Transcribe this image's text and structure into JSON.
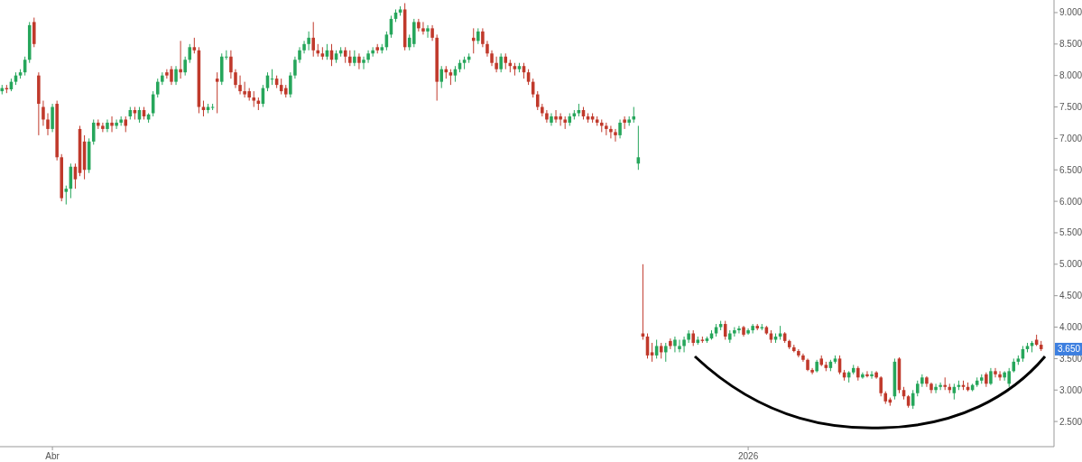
{
  "chart_data": {
    "type": "candlestick",
    "categories": [
      null,
      null,
      null,
      null,
      null,
      null,
      null,
      null,
      null,
      null,
      null,
      "Abr",
      null,
      null,
      null,
      null,
      null,
      null,
      null,
      null,
      null,
      null,
      null,
      null,
      null,
      null,
      null,
      null,
      null,
      null,
      null,
      null,
      null,
      null,
      null,
      null,
      null,
      null,
      null,
      null,
      null,
      null,
      null,
      null,
      null,
      null,
      null,
      null,
      null,
      null,
      null,
      null,
      null,
      null,
      null,
      null,
      null,
      null,
      null,
      null,
      null,
      null,
      null,
      null,
      null,
      null,
      null,
      null,
      null,
      null,
      null,
      null,
      null,
      null,
      null,
      null,
      null,
      null,
      null,
      null,
      null,
      null,
      null,
      null,
      null,
      null,
      null,
      null,
      null,
      null,
      null,
      null,
      null,
      null,
      null,
      null,
      null,
      null,
      null,
      null,
      null,
      null,
      null,
      null,
      null,
      null,
      null,
      null,
      null,
      null,
      null,
      null,
      null,
      null,
      null,
      null,
      null,
      null,
      null,
      null,
      null,
      null,
      null,
      null,
      null,
      null,
      null,
      null,
      null,
      null,
      null,
      null,
      null,
      null,
      null,
      null,
      null,
      null,
      null,
      null,
      null,
      null,
      null,
      null,
      null,
      null,
      null,
      null,
      null,
      null,
      null,
      null,
      null,
      null,
      null,
      null,
      null,
      null,
      null,
      null,
      null,
      null,
      null,
      "2026",
      null,
      null,
      null,
      null,
      null,
      null,
      null,
      null,
      null,
      null,
      null,
      null,
      null,
      null,
      null,
      null,
      null,
      null,
      null,
      null,
      null,
      null,
      null,
      null,
      null,
      null,
      null,
      null,
      null,
      null,
      null,
      null,
      null,
      null,
      null,
      null,
      null,
      null,
      null,
      null,
      null,
      null,
      null,
      null,
      null,
      null,
      null,
      null,
      null,
      null,
      null,
      null,
      null,
      null,
      null,
      null,
      null,
      null,
      null,
      null,
      null,
      null,
      null,
      null
    ],
    "ohlc": [
      [
        7.75,
        7.85,
        7.7,
        7.8
      ],
      [
        7.8,
        7.85,
        7.72,
        7.78
      ],
      [
        7.78,
        7.95,
        7.75,
        7.9
      ],
      [
        7.9,
        8.05,
        7.85,
        8.0
      ],
      [
        8.0,
        8.1,
        7.95,
        8.05
      ],
      [
        8.05,
        8.3,
        8.0,
        8.25
      ],
      [
        8.25,
        8.85,
        8.2,
        8.8
      ],
      [
        8.85,
        8.92,
        8.45,
        8.5
      ],
      [
        8.0,
        8.05,
        7.05,
        7.55
      ],
      [
        7.5,
        7.6,
        7.2,
        7.3
      ],
      [
        7.3,
        7.4,
        7.05,
        7.15
      ],
      [
        7.15,
        7.55,
        7.1,
        7.5
      ],
      [
        7.55,
        7.6,
        6.65,
        6.7
      ],
      [
        6.7,
        6.75,
        6.0,
        6.05
      ],
      [
        6.15,
        6.25,
        5.95,
        6.2
      ],
      [
        6.2,
        6.6,
        6.05,
        6.55
      ],
      [
        6.55,
        6.6,
        6.2,
        6.35
      ],
      [
        7.15,
        7.2,
        6.4,
        6.45
      ],
      [
        6.95,
        7.05,
        6.35,
        6.5
      ],
      [
        6.5,
        7.0,
        6.45,
        6.95
      ],
      [
        6.95,
        7.3,
        6.9,
        7.25
      ],
      [
        7.25,
        7.3,
        7.15,
        7.2
      ],
      [
        7.2,
        7.25,
        7.1,
        7.15
      ],
      [
        7.15,
        7.3,
        7.1,
        7.25
      ],
      [
        7.25,
        7.35,
        7.1,
        7.2
      ],
      [
        7.2,
        7.3,
        7.15,
        7.25
      ],
      [
        7.25,
        7.35,
        7.2,
        7.3
      ],
      [
        7.3,
        7.35,
        7.1,
        7.2
      ],
      [
        7.35,
        7.5,
        7.3,
        7.45
      ],
      [
        7.45,
        7.5,
        7.3,
        7.4
      ],
      [
        7.3,
        7.5,
        7.25,
        7.45
      ],
      [
        7.45,
        7.5,
        7.3,
        7.35
      ],
      [
        7.3,
        7.4,
        7.25,
        7.38
      ],
      [
        7.4,
        7.75,
        7.35,
        7.7
      ],
      [
        7.7,
        7.95,
        7.65,
        7.9
      ],
      [
        7.9,
        8.05,
        7.85,
        8.0
      ],
      [
        8.05,
        8.1,
        7.95,
        8.0
      ],
      [
        8.1,
        8.15,
        7.85,
        7.9
      ],
      [
        7.9,
        8.15,
        7.85,
        8.1
      ],
      [
        8.1,
        8.55,
        7.95,
        8.05
      ],
      [
        8.05,
        8.3,
        8.0,
        8.25
      ],
      [
        8.25,
        8.5,
        8.2,
        8.45
      ],
      [
        8.45,
        8.6,
        8.35,
        8.4
      ],
      [
        8.4,
        8.45,
        7.4,
        7.5
      ],
      [
        7.5,
        7.6,
        7.35,
        7.45
      ],
      [
        7.45,
        7.55,
        7.4,
        7.5
      ],
      [
        7.5,
        7.55,
        7.45,
        7.5
      ],
      [
        7.95,
        8.05,
        7.4,
        7.9
      ],
      [
        7.9,
        8.35,
        7.85,
        8.3
      ],
      [
        8.3,
        8.4,
        8.25,
        8.3
      ],
      [
        8.3,
        8.4,
        7.95,
        8.05
      ],
      [
        8.05,
        8.1,
        7.8,
        7.85
      ],
      [
        7.85,
        8.0,
        7.7,
        7.75
      ],
      [
        7.75,
        7.9,
        7.65,
        7.7
      ],
      [
        7.75,
        7.8,
        7.6,
        7.65
      ],
      [
        7.65,
        7.75,
        7.5,
        7.6
      ],
      [
        7.6,
        7.65,
        7.45,
        7.55
      ],
      [
        7.55,
        7.85,
        7.5,
        7.8
      ],
      [
        7.8,
        8.05,
        7.75,
        8.0
      ],
      [
        7.95,
        8.1,
        7.85,
        7.95
      ],
      [
        7.95,
        8.0,
        7.8,
        7.85
      ],
      [
        7.85,
        7.95,
        7.7,
        7.75
      ],
      [
        7.8,
        7.85,
        7.65,
        7.7
      ],
      [
        7.7,
        8.05,
        7.65,
        8.0
      ],
      [
        8.0,
        8.3,
        7.95,
        8.25
      ],
      [
        8.25,
        8.45,
        8.2,
        8.4
      ],
      [
        8.4,
        8.55,
        8.35,
        8.5
      ],
      [
        8.5,
        8.7,
        8.4,
        8.6
      ],
      [
        8.6,
        8.85,
        8.3,
        8.4
      ],
      [
        8.4,
        8.5,
        8.3,
        8.35
      ],
      [
        8.35,
        8.45,
        8.25,
        8.3
      ],
      [
        8.3,
        8.5,
        8.25,
        8.4
      ],
      [
        8.4,
        8.5,
        8.15,
        8.25
      ],
      [
        8.25,
        8.4,
        8.2,
        8.35
      ],
      [
        8.35,
        8.45,
        8.3,
        8.4
      ],
      [
        8.4,
        8.45,
        8.2,
        8.3
      ],
      [
        8.3,
        8.4,
        8.15,
        8.2
      ],
      [
        8.2,
        8.4,
        8.15,
        8.3
      ],
      [
        8.3,
        8.35,
        8.1,
        8.2
      ],
      [
        8.2,
        8.3,
        8.1,
        8.25
      ],
      [
        8.25,
        8.4,
        8.2,
        8.35
      ],
      [
        8.35,
        8.45,
        8.3,
        8.4
      ],
      [
        8.45,
        8.5,
        8.35,
        8.4
      ],
      [
        8.4,
        8.5,
        8.35,
        8.45
      ],
      [
        8.45,
        8.7,
        8.4,
        8.65
      ],
      [
        8.65,
        8.95,
        8.6,
        8.9
      ],
      [
        8.9,
        9.05,
        8.85,
        9.0
      ],
      [
        9.0,
        9.1,
        8.95,
        9.05
      ],
      [
        9.05,
        9.15,
        8.4,
        8.45
      ],
      [
        8.45,
        8.65,
        8.4,
        8.6
      ],
      [
        8.5,
        8.9,
        8.45,
        8.85
      ],
      [
        8.85,
        8.9,
        8.7,
        8.75
      ],
      [
        8.75,
        8.85,
        8.65,
        8.7
      ],
      [
        8.7,
        8.8,
        8.6,
        8.75
      ],
      [
        8.75,
        8.8,
        8.55,
        8.6
      ],
      [
        8.6,
        8.65,
        7.6,
        7.9
      ],
      [
        7.9,
        8.15,
        7.8,
        8.1
      ],
      [
        8.1,
        8.15,
        7.95,
        8.05
      ],
      [
        8.05,
        8.1,
        7.85,
        8.0
      ],
      [
        8.0,
        8.15,
        7.9,
        8.1
      ],
      [
        8.1,
        8.25,
        8.05,
        8.2
      ],
      [
        8.2,
        8.3,
        8.1,
        8.25
      ],
      [
        8.25,
        8.35,
        8.2,
        8.3
      ],
      [
        8.6,
        8.75,
        8.35,
        8.55
      ],
      [
        8.55,
        8.75,
        8.5,
        8.7
      ],
      [
        8.7,
        8.75,
        8.45,
        8.5
      ],
      [
        8.5,
        8.55,
        8.3,
        8.35
      ],
      [
        8.35,
        8.4,
        8.15,
        8.2
      ],
      [
        8.2,
        8.3,
        8.05,
        8.1
      ],
      [
        8.1,
        8.35,
        8.05,
        8.3
      ],
      [
        8.3,
        8.35,
        8.1,
        8.2
      ],
      [
        8.2,
        8.25,
        8.05,
        8.15
      ],
      [
        8.15,
        8.2,
        8.0,
        8.1
      ],
      [
        8.1,
        8.2,
        8.05,
        8.15
      ],
      [
        8.15,
        8.2,
        7.95,
        8.05
      ],
      [
        8.05,
        8.1,
        7.85,
        7.9
      ],
      [
        7.9,
        7.95,
        7.65,
        7.7
      ],
      [
        7.7,
        7.75,
        7.45,
        7.5
      ],
      [
        7.5,
        7.55,
        7.35,
        7.4
      ],
      [
        7.4,
        7.45,
        7.25,
        7.3
      ],
      [
        7.25,
        7.4,
        7.2,
        7.35
      ],
      [
        7.35,
        7.45,
        7.25,
        7.3
      ],
      [
        7.35,
        7.4,
        7.2,
        7.3
      ],
      [
        7.3,
        7.35,
        7.15,
        7.25
      ],
      [
        7.25,
        7.4,
        7.2,
        7.35
      ],
      [
        7.35,
        7.45,
        7.3,
        7.4
      ],
      [
        7.4,
        7.55,
        7.35,
        7.45
      ],
      [
        7.45,
        7.5,
        7.3,
        7.35
      ],
      [
        7.35,
        7.4,
        7.25,
        7.3
      ],
      [
        7.35,
        7.4,
        7.25,
        7.3
      ],
      [
        7.3,
        7.35,
        7.2,
        7.25
      ],
      [
        7.25,
        7.3,
        7.1,
        7.2
      ],
      [
        7.2,
        7.25,
        7.05,
        7.15
      ],
      [
        7.15,
        7.2,
        7.0,
        7.1
      ],
      [
        7.1,
        7.15,
        6.95,
        7.05
      ],
      [
        7.05,
        7.3,
        7.0,
        7.25
      ],
      [
        7.3,
        7.35,
        7.15,
        7.25
      ],
      [
        7.25,
        7.35,
        7.2,
        7.3
      ],
      [
        7.3,
        7.5,
        7.25,
        7.35
      ],
      [
        6.6,
        7.2,
        6.5,
        6.7
      ],
      [
        3.9,
        5.0,
        3.8,
        3.85
      ],
      [
        3.85,
        3.9,
        3.5,
        3.55
      ],
      [
        3.6,
        3.75,
        3.45,
        3.55
      ],
      [
        3.55,
        3.8,
        3.5,
        3.7
      ],
      [
        3.7,
        3.75,
        3.5,
        3.6
      ],
      [
        3.6,
        3.75,
        3.45,
        3.7
      ],
      [
        3.78,
        3.82,
        3.65,
        3.7
      ],
      [
        3.7,
        3.85,
        3.6,
        3.8
      ],
      [
        3.65,
        3.8,
        3.6,
        3.7
      ],
      [
        3.7,
        3.85,
        3.6,
        3.8
      ],
      [
        3.8,
        3.95,
        3.75,
        3.9
      ],
      [
        3.9,
        3.95,
        3.7,
        3.75
      ],
      [
        3.75,
        3.85,
        3.72,
        3.8
      ],
      [
        3.8,
        3.85,
        3.75,
        3.78
      ],
      [
        3.78,
        3.85,
        3.75,
        3.82
      ],
      [
        3.82,
        3.95,
        3.8,
        3.9
      ],
      [
        3.9,
        4.05,
        3.85,
        4.0
      ],
      [
        4.0,
        4.1,
        3.95,
        4.05
      ],
      [
        4.05,
        4.1,
        3.8,
        3.85
      ],
      [
        3.8,
        3.95,
        3.75,
        3.9
      ],
      [
        3.9,
        4.0,
        3.85,
        3.95
      ],
      [
        3.95,
        4.02,
        3.9,
        3.98
      ],
      [
        4.0,
        4.02,
        3.85,
        3.88
      ],
      [
        3.9,
        3.98,
        3.88,
        3.95
      ],
      [
        3.95,
        4.05,
        3.9,
        4.02
      ],
      [
        4.02,
        4.05,
        3.95,
        3.98
      ],
      [
        3.98,
        4.05,
        3.95,
        4.0
      ],
      [
        4.0,
        4.02,
        3.88,
        3.9
      ],
      [
        3.9,
        3.95,
        3.75,
        3.8
      ],
      [
        3.8,
        3.9,
        3.75,
        3.85
      ],
      [
        3.85,
        4.02,
        3.8,
        3.9
      ],
      [
        3.9,
        3.92,
        3.75,
        3.78
      ],
      [
        3.78,
        3.8,
        3.65,
        3.68
      ],
      [
        3.68,
        3.72,
        3.6,
        3.62
      ],
      [
        3.62,
        3.65,
        3.52,
        3.55
      ],
      [
        3.55,
        3.58,
        3.45,
        3.48
      ],
      [
        3.48,
        3.5,
        3.3,
        3.32
      ],
      [
        3.32,
        3.35,
        3.25,
        3.28
      ],
      [
        3.3,
        3.48,
        3.28,
        3.45
      ],
      [
        3.5,
        3.55,
        3.38,
        3.4
      ],
      [
        3.4,
        3.45,
        3.3,
        3.35
      ],
      [
        3.35,
        3.48,
        3.3,
        3.45
      ],
      [
        3.45,
        3.55,
        3.42,
        3.5
      ],
      [
        3.5,
        3.55,
        3.25,
        3.28
      ],
      [
        3.28,
        3.32,
        3.15,
        3.2
      ],
      [
        3.2,
        3.3,
        3.12,
        3.28
      ],
      [
        3.28,
        3.4,
        3.25,
        3.35
      ],
      [
        3.35,
        3.38,
        3.15,
        3.2
      ],
      [
        3.2,
        3.28,
        3.18,
        3.25
      ],
      [
        3.25,
        3.3,
        3.2,
        3.22
      ],
      [
        3.22,
        3.3,
        3.18,
        3.25
      ],
      [
        3.28,
        3.3,
        3.18,
        3.2
      ],
      [
        3.2,
        3.22,
        2.9,
        2.95
      ],
      [
        2.95,
        2.98,
        2.78,
        2.82
      ],
      [
        2.85,
        2.88,
        2.75,
        2.8
      ],
      [
        2.9,
        3.5,
        2.85,
        3.45
      ],
      [
        3.5,
        3.52,
        2.95,
        3.0
      ],
      [
        3.0,
        3.05,
        2.85,
        2.9
      ],
      [
        2.9,
        2.92,
        2.72,
        2.75
      ],
      [
        2.75,
        3.0,
        2.7,
        2.95
      ],
      [
        2.95,
        3.15,
        2.9,
        3.1
      ],
      [
        3.1,
        3.25,
        3.05,
        3.2
      ],
      [
        3.2,
        3.22,
        3.05,
        3.1
      ],
      [
        3.1,
        3.12,
        2.95,
        3.0
      ],
      [
        3.0,
        3.1,
        2.95,
        3.05
      ],
      [
        3.05,
        3.12,
        3.0,
        3.08
      ],
      [
        3.08,
        3.2,
        3.0,
        3.05
      ],
      [
        3.05,
        3.1,
        2.95,
        3.0
      ],
      [
        2.95,
        3.1,
        2.85,
        3.05
      ],
      [
        3.05,
        3.15,
        3.0,
        3.08
      ],
      [
        3.08,
        3.15,
        3.0,
        3.05
      ],
      [
        3.05,
        3.12,
        2.98,
        3.0
      ],
      [
        3.0,
        3.1,
        2.98,
        3.08
      ],
      [
        3.08,
        3.2,
        3.05,
        3.15
      ],
      [
        3.15,
        3.25,
        3.1,
        3.2
      ],
      [
        3.25,
        3.28,
        3.05,
        3.1
      ],
      [
        3.1,
        3.35,
        3.08,
        3.3
      ],
      [
        3.3,
        3.35,
        3.2,
        3.25
      ],
      [
        3.25,
        3.3,
        3.15,
        3.2
      ],
      [
        3.2,
        3.3,
        3.15,
        3.28
      ],
      [
        3.1,
        3.35,
        3.05,
        3.3
      ],
      [
        3.3,
        3.5,
        3.28,
        3.45
      ],
      [
        3.45,
        3.55,
        3.4,
        3.5
      ],
      [
        3.5,
        3.7,
        3.45,
        3.65
      ],
      [
        3.65,
        3.75,
        3.6,
        3.7
      ],
      [
        3.7,
        3.78,
        3.6,
        3.75
      ],
      [
        3.8,
        3.88,
        3.7,
        3.72
      ],
      [
        3.72,
        3.78,
        3.62,
        3.65
      ]
    ],
    "colors": [
      "#26a65b",
      "#c0392b",
      "#26a65b",
      "#26a65b",
      "#26a65b",
      "#26a65b",
      "#26a65b",
      "#c0392b",
      "#c0392b",
      "#c0392b",
      "#c0392b",
      "#26a65b",
      "#c0392b",
      "#c0392b",
      "#26a65b",
      "#26a65b",
      "#c0392b",
      "#c0392b",
      "#c0392b",
      "#26a65b",
      "#26a65b",
      "#c0392b",
      "#c0392b",
      "#26a65b",
      "#c0392b",
      "#26a65b",
      "#26a65b",
      "#c0392b",
      "#26a65b",
      "#c0392b",
      "#26a65b",
      "#c0392b",
      "#26a65b",
      "#26a65b",
      "#26a65b",
      "#26a65b",
      "#c0392b",
      "#c0392b",
      "#26a65b",
      "#c0392b",
      "#26a65b",
      "#26a65b",
      "#c0392b",
      "#c0392b",
      "#c0392b",
      "#26a65b",
      "#26a65b",
      "#c0392b",
      "#26a65b",
      "#26a65b",
      "#c0392b",
      "#c0392b",
      "#c0392b",
      "#c0392b",
      "#c0392b",
      "#c0392b",
      "#c0392b",
      "#26a65b",
      "#26a65b",
      "#26a65b",
      "#c0392b",
      "#c0392b",
      "#c0392b",
      "#26a65b",
      "#26a65b",
      "#26a65b",
      "#26a65b",
      "#26a65b",
      "#c0392b",
      "#c0392b",
      "#c0392b",
      "#26a65b",
      "#c0392b",
      "#26a65b",
      "#26a65b",
      "#c0392b",
      "#c0392b",
      "#26a65b",
      "#c0392b",
      "#26a65b",
      "#26a65b",
      "#26a65b",
      "#c0392b",
      "#26a65b",
      "#26a65b",
      "#26a65b",
      "#26a65b",
      "#26a65b",
      "#c0392b",
      "#26a65b",
      "#26a65b",
      "#c0392b",
      "#c0392b",
      "#26a65b",
      "#c0392b",
      "#c0392b",
      "#26a65b",
      "#c0392b",
      "#c0392b",
      "#26a65b",
      "#26a65b",
      "#26a65b",
      "#26a65b",
      "#c0392b",
      "#26a65b",
      "#c0392b",
      "#c0392b",
      "#c0392b",
      "#c0392b",
      "#26a65b",
      "#c0392b",
      "#c0392b",
      "#c0392b",
      "#26a65b",
      "#c0392b",
      "#c0392b",
      "#c0392b",
      "#c0392b",
      "#c0392b",
      "#c0392b",
      "#26a65b",
      "#c0392b",
      "#c0392b",
      "#c0392b",
      "#26a65b",
      "#26a65b",
      "#26a65b",
      "#c0392b",
      "#c0392b",
      "#c0392b",
      "#c0392b",
      "#c0392b",
      "#c0392b",
      "#c0392b",
      "#c0392b",
      "#26a65b",
      "#c0392b",
      "#26a65b",
      "#26a65b",
      "#26a65b",
      "#c0392b",
      "#c0392b",
      "#c0392b",
      "#26a65b",
      "#c0392b",
      "#26a65b",
      "#c0392b",
      "#26a65b",
      "#26a65b",
      "#26a65b",
      "#26a65b",
      "#c0392b",
      "#26a65b",
      "#c0392b",
      "#26a65b",
      "#26a65b",
      "#26a65b",
      "#26a65b",
      "#c0392b",
      "#26a65b",
      "#26a65b",
      "#26a65b",
      "#c0392b",
      "#26a65b",
      "#26a65b",
      "#c0392b",
      "#26a65b",
      "#c0392b",
      "#c0392b",
      "#26a65b",
      "#26a65b",
      "#c0392b",
      "#c0392b",
      "#c0392b",
      "#c0392b",
      "#c0392b",
      "#c0392b",
      "#c0392b",
      "#26a65b",
      "#c0392b",
      "#c0392b",
      "#26a65b",
      "#26a65b",
      "#c0392b",
      "#c0392b",
      "#26a65b",
      "#26a65b",
      "#c0392b",
      "#26a65b",
      "#c0392b",
      "#26a65b",
      "#c0392b",
      "#c0392b",
      "#c0392b",
      "#c0392b",
      "#26a65b",
      "#c0392b",
      "#c0392b",
      "#c0392b",
      "#26a65b",
      "#26a65b",
      "#26a65b",
      "#c0392b",
      "#c0392b",
      "#26a65b",
      "#26a65b",
      "#c0392b",
      "#c0392b",
      "#26a65b",
      "#26a65b",
      "#c0392b",
      "#c0392b",
      "#26a65b",
      "#26a65b",
      "#26a65b",
      "#c0392b",
      "#26a65b",
      "#c0392b",
      "#c0392b",
      "#26a65b",
      "#26a65b",
      "#26a65b",
      "#26a65b",
      "#26a65b",
      "#26a65b",
      "#26a65b",
      "#c0392b",
      "#c0392b"
    ],
    "ylim": [
      2.1,
      9.2
    ],
    "yticks": [
      {
        "value": 2.5,
        "label": "2.500"
      },
      {
        "value": 3,
        "label": "3.000"
      },
      {
        "value": 3.5,
        "label": "3.500"
      },
      {
        "value": 4,
        "label": "4.000"
      },
      {
        "value": 4.5,
        "label": "4.500"
      },
      {
        "value": 5,
        "label": "5.000"
      },
      {
        "value": 5.5,
        "label": "5.500"
      },
      {
        "value": 6,
        "label": "6.000"
      },
      {
        "value": 6.5,
        "label": "6.500"
      },
      {
        "value": 7,
        "label": "7.000"
      },
      {
        "value": 7.5,
        "label": "7.500"
      },
      {
        "value": 8,
        "label": "8.000"
      },
      {
        "value": 8.5,
        "label": "8.500"
      },
      {
        "value": 9,
        "label": "9.000"
      }
    ],
    "annotations": [
      {
        "text": "3.650",
        "y": 3.65
      }
    ]
  }
}
